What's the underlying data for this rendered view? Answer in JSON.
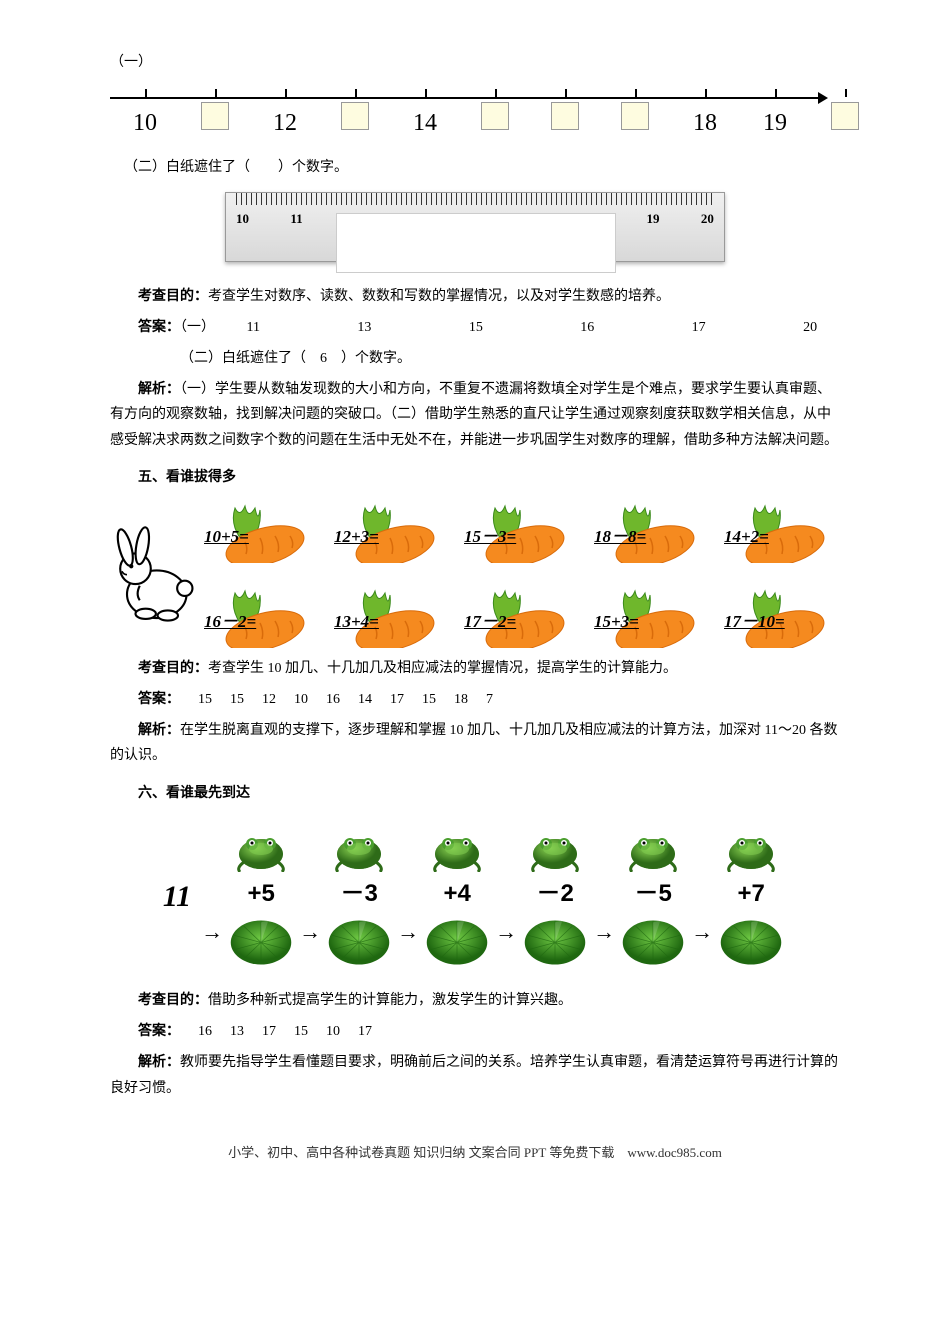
{
  "colors": {
    "box_bg": "#fefce0",
    "carrot_body": "#f58a1f",
    "carrot_shade": "#d96b0a",
    "leaf_green": "#6fb72c",
    "leaf_dark": "#3a8a1a",
    "frog_green": "#4a9e2e",
    "frog_dark": "#2e6b18",
    "lily_green": "#3fa028",
    "lily_dark": "#1f6810"
  },
  "q1": {
    "label": "（一）",
    "items": [
      {
        "type": "num",
        "v": "10"
      },
      {
        "type": "box"
      },
      {
        "type": "num",
        "v": "12"
      },
      {
        "type": "box"
      },
      {
        "type": "num",
        "v": "14"
      },
      {
        "type": "box"
      },
      {
        "type": "box"
      },
      {
        "type": "box"
      },
      {
        "type": "num",
        "v": "18"
      },
      {
        "type": "num",
        "v": "19"
      },
      {
        "type": "box"
      }
    ]
  },
  "q2": {
    "label": "（二）白纸遮住了（　　）个数字。",
    "ruler_visible": [
      "10",
      "11",
      "",
      "",
      "",
      "",
      "",
      "",
      "18",
      "19",
      "20"
    ]
  },
  "exam_purpose_label": "考查目的：",
  "answer_label": "答案：",
  "analysis_label": "解析：",
  "s1": {
    "purpose": "考查学生对数序、读数、数数和写数的掌握情况，以及对学生数感的培养。",
    "answer_prefix": "（一）",
    "answer_nums": [
      "11",
      "13",
      "15",
      "16",
      "17",
      "20"
    ],
    "answer_line2": "（二）白纸遮住了（　6　）个数字。",
    "analysis": "（一）学生要从数轴发现数的大小和方向，不重复不遗漏将数填全对学生是个难点，要求学生要认真审题、有方向的观察数轴，找到解决问题的突破口。（二）借助学生熟悉的直尺让学生通过观察刻度获取数学相关信息，从中感受解决求两数之间数字个数的问题在生活中无处不在，并能进一步巩固学生对数序的理解，借助多种方法解决问题。"
  },
  "s5": {
    "title": "五、看谁拔得多",
    "row1": [
      "10+5=",
      "12+3=",
      "15－3=",
      "18－8=",
      "14+2="
    ],
    "row2": [
      "16－2=",
      "13+4=",
      "17－2=",
      "15+3=",
      "17－10="
    ],
    "purpose": "考查学生 10 加几、十几加几及相应减法的掌握情况，提高学生的计算能力。",
    "answers": [
      "15",
      "15",
      "12",
      "10",
      "16",
      "14",
      "17",
      "15",
      "18",
      "7"
    ],
    "analysis": "在学生脱离直观的支撑下，逐步理解和掌握 10 加几、十几加几及相应减法的计算方法，加深对 11～20 各数的认识。"
  },
  "s6": {
    "title": "六、看谁最先到达",
    "start": "11",
    "ops": [
      "+5",
      "－3",
      "+4",
      "－2",
      "－5",
      "+7"
    ],
    "purpose": "借助多种新式提高学生的计算能力，激发学生的计算兴趣。",
    "answers": [
      "16",
      "13",
      "17",
      "15",
      "10",
      "17"
    ],
    "analysis": "教师要先指导学生看懂题目要求，明确前后之间的关系。培养学生认真审题，看清楚运算符号再进行计算的良好习惯。"
  },
  "footer": "小学、初中、高中各种试卷真题 知识归纳 文案合同 PPT 等免费下载　www.doc985.com"
}
